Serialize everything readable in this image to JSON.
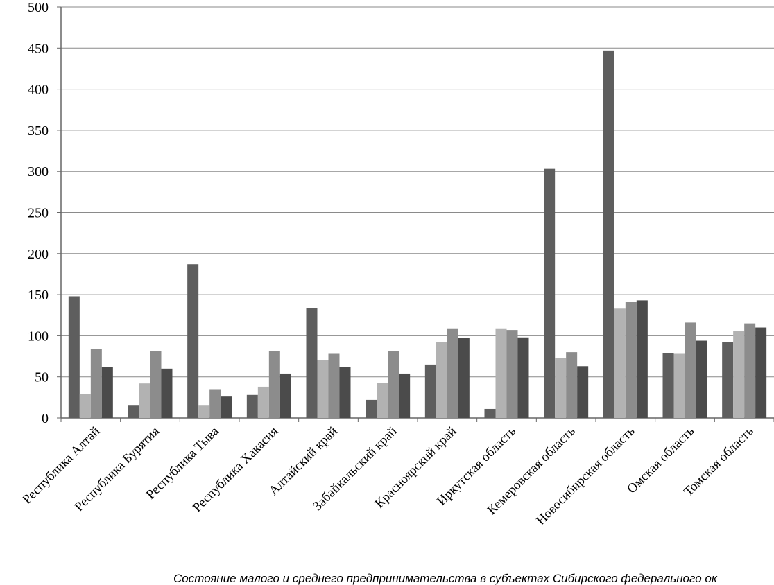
{
  "chart_data": {
    "type": "bar",
    "caption": "Состояние малого и среднего предпринимательства в субъектах Сибирского федерального ок",
    "categories": [
      "Республика Алтай",
      "Республика Бурятия",
      "Республика Тыва",
      "Республика Хакасия",
      "Алтайский край",
      "Забайкальский край",
      "Красноярский край",
      "Иркутская область",
      "Кемеровская область",
      "Новосибирская область",
      "Омская область",
      "Томская область"
    ],
    "series": [
      {
        "color": "#5e5e5e",
        "values": [
          148,
          15,
          187,
          28,
          134,
          22,
          65,
          11,
          303,
          447,
          79,
          92
        ]
      },
      {
        "color": "#b2b2b2",
        "values": [
          29,
          42,
          15,
          38,
          70,
          43,
          92,
          109,
          73,
          133,
          78,
          106
        ]
      },
      {
        "color": "#8c8c8c",
        "values": [
          84,
          81,
          35,
          81,
          78,
          81,
          109,
          107,
          80,
          141,
          116,
          115
        ]
      },
      {
        "color": "#4b4b4b",
        "values": [
          62,
          60,
          26,
          54,
          62,
          54,
          97,
          98,
          63,
          143,
          94,
          110
        ]
      }
    ],
    "ylim": [
      0,
      500
    ],
    "yticks": [
      0,
      50,
      100,
      150,
      200,
      250,
      300,
      350,
      400,
      450,
      500
    ],
    "grid": true
  }
}
